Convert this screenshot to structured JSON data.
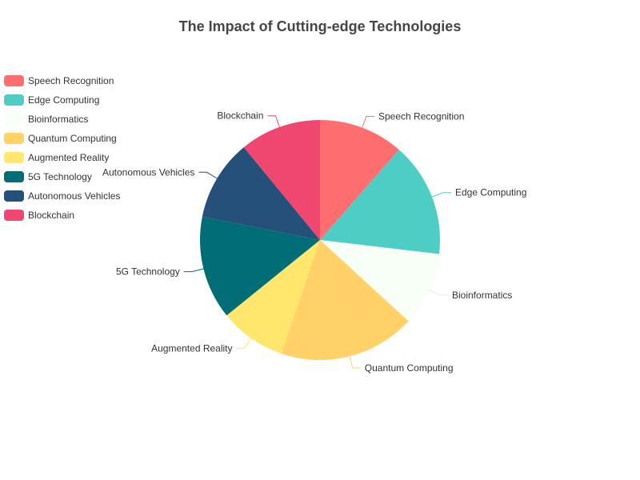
{
  "chart_data": {
    "type": "pie",
    "title": "The Impact of Cutting-edge Technologies",
    "legend_position": "left",
    "categories": [
      "Speech Recognition",
      "Edge Computing",
      "Bioinformatics",
      "Quantum Computing",
      "Augmented Reality",
      "5G Technology",
      "Autonomous Vehicles",
      "Blockchain"
    ],
    "values": [
      11.5,
      15.5,
      10,
      18.5,
      9,
      14,
      11,
      11
    ],
    "colors": [
      "#ff6e6e",
      "#4ecdc4",
      "#f7fff7",
      "#ffd166",
      "#ffe66d",
      "#006d77",
      "#25507a",
      "#ef476f"
    ]
  }
}
